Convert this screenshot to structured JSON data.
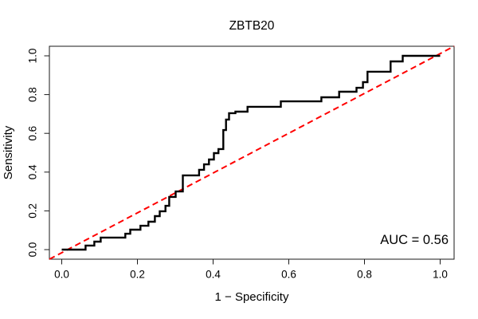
{
  "chart_data": {
    "type": "line",
    "title": "ZBTB20",
    "xlabel": "1 − Specificity",
    "ylabel": "Sensitivity",
    "annotation": "AUC = 0.56",
    "auc": 0.56,
    "xlim": [
      0.0,
      1.0
    ],
    "ylim": [
      0.0,
      1.0
    ],
    "grid": "off",
    "legend": "none",
    "x_ticks": [
      0.0,
      0.2,
      0.4,
      0.6,
      0.8,
      1.0
    ],
    "x_tick_labels": [
      "0.0",
      "0.2",
      "0.4",
      "0.6",
      "0.8",
      "1.0"
    ],
    "y_ticks": [
      0.0,
      0.2,
      0.4,
      0.6,
      0.8,
      1.0
    ],
    "y_tick_labels": [
      "0.0",
      "0.2",
      "0.4",
      "0.6",
      "0.8",
      "1.0"
    ],
    "series": [
      {
        "name": "ROC curve",
        "style": "step",
        "color": "#000000",
        "x": [
          0.0,
          0.063,
          0.086,
          0.103,
          0.168,
          0.181,
          0.208,
          0.229,
          0.246,
          0.259,
          0.274,
          0.284,
          0.301,
          0.32,
          0.363,
          0.376,
          0.389,
          0.402,
          0.414,
          0.427,
          0.434,
          0.442,
          0.459,
          0.491,
          0.579,
          0.686,
          0.733,
          0.779,
          0.796,
          0.808,
          0.869,
          0.901,
          1.0
        ],
        "y": [
          0.0,
          0.021,
          0.041,
          0.062,
          0.082,
          0.103,
          0.123,
          0.144,
          0.173,
          0.198,
          0.226,
          0.272,
          0.3,
          0.383,
          0.412,
          0.44,
          0.465,
          0.498,
          0.519,
          0.617,
          0.671,
          0.704,
          0.712,
          0.737,
          0.765,
          0.786,
          0.815,
          0.835,
          0.864,
          0.918,
          0.971,
          1.0,
          1.0
        ]
      },
      {
        "name": "chance diagonal",
        "style": "dashed",
        "color": "#ff0000",
        "x": [
          0.0,
          1.0
        ],
        "y": [
          0.0,
          1.0
        ]
      }
    ]
  }
}
